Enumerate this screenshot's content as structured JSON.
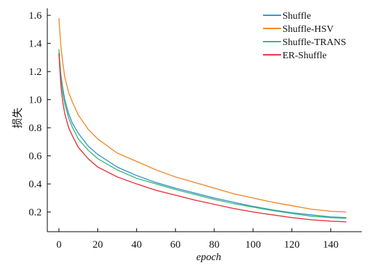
{
  "chart_data": {
    "type": "line",
    "xlabel": "epoch",
    "ylabel": "损失",
    "xlim": [
      -6,
      156
    ],
    "ylim": [
      0.06,
      1.65
    ],
    "xticks": [
      0,
      20,
      40,
      60,
      80,
      100,
      120,
      140
    ],
    "yticks": [
      0.2,
      0.4,
      0.6,
      0.8,
      1.0,
      1.2,
      1.4,
      1.6
    ],
    "xtick_labels": [
      "0",
      "20",
      "40",
      "60",
      "80",
      "100",
      "120",
      "140"
    ],
    "ytick_labels": [
      "0.2",
      "0.4",
      "0.6",
      "0.8",
      "1.0",
      "1.2",
      "1.4",
      "1.6"
    ],
    "legend_position": "top-right",
    "grid": false,
    "x": [
      0,
      1,
      2,
      3,
      5,
      7,
      10,
      15,
      20,
      30,
      40,
      50,
      60,
      70,
      80,
      90,
      100,
      110,
      120,
      130,
      140,
      148
    ],
    "series": [
      {
        "name": "Shuffle",
        "color": "#3a93c9",
        "values": [
          1.33,
          1.18,
          1.08,
          1.0,
          0.9,
          0.83,
          0.76,
          0.67,
          0.61,
          0.52,
          0.46,
          0.41,
          0.37,
          0.335,
          0.3,
          0.27,
          0.24,
          0.215,
          0.195,
          0.18,
          0.165,
          0.16
        ]
      },
      {
        "name": "Shuffle-HSV",
        "color": "#f08a2c",
        "values": [
          1.58,
          1.38,
          1.26,
          1.16,
          1.05,
          0.98,
          0.89,
          0.79,
          0.72,
          0.62,
          0.56,
          0.5,
          0.45,
          0.41,
          0.37,
          0.33,
          0.3,
          0.27,
          0.245,
          0.22,
          0.205,
          0.2
        ]
      },
      {
        "name": "Shuffle-TRANS",
        "color": "#3cb87a",
        "values": [
          1.36,
          1.16,
          1.05,
          0.97,
          0.87,
          0.8,
          0.72,
          0.64,
          0.58,
          0.5,
          0.44,
          0.4,
          0.36,
          0.325,
          0.29,
          0.26,
          0.235,
          0.21,
          0.19,
          0.17,
          0.16,
          0.155
        ]
      },
      {
        "name": "ER-Shuffle",
        "color": "#e8323a",
        "values": [
          1.33,
          1.1,
          0.98,
          0.9,
          0.8,
          0.74,
          0.66,
          0.58,
          0.52,
          0.45,
          0.4,
          0.355,
          0.32,
          0.285,
          0.255,
          0.225,
          0.2,
          0.18,
          0.16,
          0.145,
          0.135,
          0.13
        ]
      }
    ]
  }
}
